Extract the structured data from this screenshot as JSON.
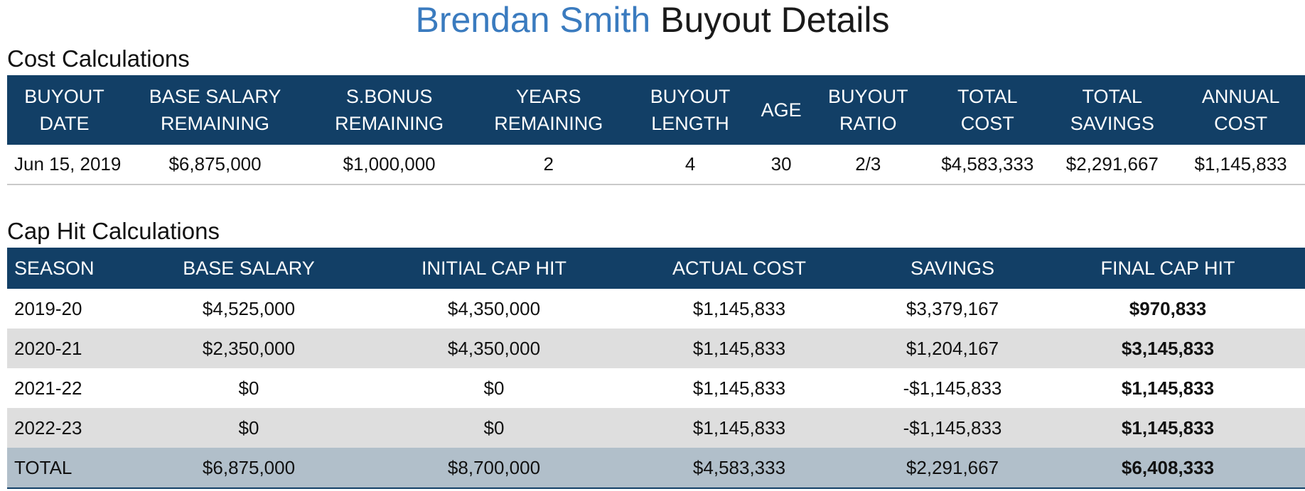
{
  "title": {
    "player": "Brendan Smith",
    "rest": "Buyout Details"
  },
  "cost_section": {
    "title": "Cost Calculations",
    "headers": [
      [
        "BUYOUT",
        "DATE"
      ],
      [
        "BASE SALARY",
        "REMAINING"
      ],
      [
        "S.BONUS",
        "REMAINING"
      ],
      [
        "YEARS",
        "REMAINING"
      ],
      [
        "BUYOUT",
        "LENGTH"
      ],
      [
        "AGE",
        ""
      ],
      [
        "BUYOUT",
        "RATIO"
      ],
      [
        "TOTAL",
        "COST"
      ],
      [
        "TOTAL",
        "SAVINGS"
      ],
      [
        "ANNUAL",
        "COST"
      ]
    ],
    "row": [
      "Jun 15, 2019",
      "$6,875,000",
      "$1,000,000",
      "2",
      "4",
      "30",
      "2/3",
      "$4,583,333",
      "$2,291,667",
      "$1,145,833"
    ]
  },
  "cap_section": {
    "title": "Cap Hit Calculations",
    "headers": [
      "SEASON",
      "BASE SALARY",
      "INITIAL CAP HIT",
      "ACTUAL COST",
      "SAVINGS",
      "FINAL CAP HIT"
    ],
    "rows": [
      [
        "2019-20",
        "$4,525,000",
        "$4,350,000",
        "$1,145,833",
        "$3,379,167",
        "$970,833"
      ],
      [
        "2020-21",
        "$2,350,000",
        "$4,350,000",
        "$1,145,833",
        "$1,204,167",
        "$3,145,833"
      ],
      [
        "2021-22",
        "$0",
        "$0",
        "$1,145,833",
        "-$1,145,833",
        "$1,145,833"
      ],
      [
        "2022-23",
        "$0",
        "$0",
        "$1,145,833",
        "-$1,145,833",
        "$1,145,833"
      ]
    ],
    "total": [
      "TOTAL",
      "$6,875,000",
      "$8,700,000",
      "$4,583,333",
      "$2,291,667",
      "$6,408,333"
    ]
  },
  "colors": {
    "header_bg": "#123f66",
    "player_link": "#3a7bbf",
    "alt_row": "#dedede",
    "total_row": "#b1bfca"
  }
}
